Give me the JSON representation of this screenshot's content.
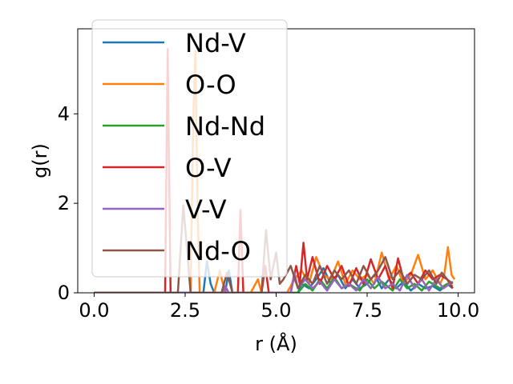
{
  "chart_data": {
    "type": "line",
    "xlabel": "r (Å)",
    "ylabel": "g(r)",
    "xlim": [
      -0.45,
      10.45
    ],
    "ylim": [
      0,
      5.9
    ],
    "xticks": [
      0.0,
      2.5,
      5.0,
      7.5,
      10.0
    ],
    "xtick_labels": [
      "0.0",
      "2.5",
      "5.0",
      "7.5",
      "10.0"
    ],
    "yticks": [
      0,
      2,
      4
    ],
    "ytick_labels": [
      "0",
      "2",
      "4"
    ],
    "grid": false,
    "legend_position": "upper-left",
    "series": [
      {
        "name": "Nd-V",
        "color": "#1f77b4",
        "points": [
          [
            0,
            0
          ],
          [
            3.0,
            0
          ],
          [
            3.1,
            0.7
          ],
          [
            3.2,
            0.2
          ],
          [
            3.3,
            0
          ],
          [
            3.6,
            0
          ],
          [
            3.7,
            0.5
          ],
          [
            3.8,
            0
          ],
          [
            5.6,
            0
          ],
          [
            5.7,
            0.2
          ],
          [
            5.9,
            0.1
          ],
          [
            6.1,
            0.3
          ],
          [
            6.3,
            0.55
          ],
          [
            6.5,
            0.2
          ],
          [
            6.7,
            0.4
          ],
          [
            6.9,
            0.1
          ],
          [
            7.1,
            0.3
          ],
          [
            7.3,
            0.1
          ],
          [
            7.5,
            0.2
          ],
          [
            7.7,
            0.4
          ],
          [
            7.9,
            0.1
          ],
          [
            8.1,
            0.3
          ],
          [
            8.3,
            0.1
          ],
          [
            8.5,
            0.25
          ],
          [
            8.7,
            0.05
          ],
          [
            8.9,
            0.2
          ],
          [
            9.1,
            0.1
          ],
          [
            9.3,
            0.15
          ],
          [
            9.5,
            0.05
          ],
          [
            9.7,
            0.2
          ],
          [
            9.85,
            0.1
          ]
        ]
      },
      {
        "name": "O-O",
        "color": "#ff7f0e",
        "points": [
          [
            0,
            0
          ],
          [
            2.65,
            0
          ],
          [
            2.72,
            3.8
          ],
          [
            2.78,
            5.4
          ],
          [
            2.84,
            2.0
          ],
          [
            2.9,
            0
          ],
          [
            3.3,
            0
          ],
          [
            3.45,
            0.5
          ],
          [
            3.6,
            0
          ],
          [
            4.3,
            0
          ],
          [
            4.5,
            0.3
          ],
          [
            4.6,
            0
          ],
          [
            5.3,
            0
          ],
          [
            5.5,
            0.3
          ],
          [
            5.7,
            0.5
          ],
          [
            5.9,
            0.2
          ],
          [
            6.1,
            0.8
          ],
          [
            6.3,
            0.4
          ],
          [
            6.5,
            0.3
          ],
          [
            6.7,
            0.7
          ],
          [
            6.9,
            0.2
          ],
          [
            7.1,
            0.5
          ],
          [
            7.3,
            0.3
          ],
          [
            7.5,
            0.4
          ],
          [
            7.7,
            0.2
          ],
          [
            7.9,
            0.9
          ],
          [
            8.1,
            0.3
          ],
          [
            8.3,
            0.6
          ],
          [
            8.5,
            0.2
          ],
          [
            8.7,
            0.4
          ],
          [
            8.9,
            0.85
          ],
          [
            9.1,
            0.3
          ],
          [
            9.3,
            0.5
          ],
          [
            9.5,
            0.2
          ],
          [
            9.62,
            0.4
          ],
          [
            9.72,
            1.02
          ],
          [
            9.82,
            0.4
          ],
          [
            9.9,
            0.3
          ]
        ]
      },
      {
        "name": "Nd-Nd",
        "color": "#2ca02c",
        "points": [
          [
            0,
            0
          ],
          [
            5.6,
            0
          ],
          [
            5.8,
            0.2
          ],
          [
            6.0,
            0.05
          ],
          [
            6.2,
            0.3
          ],
          [
            6.4,
            0.1
          ],
          [
            6.6,
            0.35
          ],
          [
            6.8,
            0.1
          ],
          [
            7.0,
            0.2
          ],
          [
            7.3,
            0.05
          ],
          [
            7.5,
            0.3
          ],
          [
            7.7,
            0.1
          ],
          [
            7.9,
            0.25
          ],
          [
            8.2,
            0.05
          ],
          [
            8.4,
            0.3
          ],
          [
            8.6,
            0.1
          ],
          [
            8.8,
            0.2
          ],
          [
            9.0,
            0.05
          ],
          [
            9.2,
            0.25
          ],
          [
            9.5,
            0.1
          ],
          [
            9.7,
            0.2
          ],
          [
            9.85,
            0.15
          ]
        ]
      },
      {
        "name": "O-V",
        "color": "#d62728",
        "points": [
          [
            0,
            0
          ],
          [
            1.95,
            0
          ],
          [
            2.02,
            5.45
          ],
          [
            2.1,
            0
          ],
          [
            3.95,
            0
          ],
          [
            4.02,
            1.85
          ],
          [
            4.1,
            0
          ],
          [
            4.6,
            0
          ],
          [
            4.7,
            0.6
          ],
          [
            4.8,
            0
          ],
          [
            5.4,
            0
          ],
          [
            5.55,
            0.6
          ],
          [
            5.65,
            0.2
          ],
          [
            5.75,
            1.12
          ],
          [
            5.85,
            0.3
          ],
          [
            6.0,
            0.8
          ],
          [
            6.2,
            0.2
          ],
          [
            6.4,
            0.6
          ],
          [
            6.6,
            0.3
          ],
          [
            6.8,
            0.6
          ],
          [
            7.0,
            0.15
          ],
          [
            7.2,
            0.55
          ],
          [
            7.4,
            0.2
          ],
          [
            7.6,
            0.75
          ],
          [
            7.8,
            0.3
          ],
          [
            8.0,
            0.6
          ],
          [
            8.2,
            0.1
          ],
          [
            8.35,
            0.77
          ],
          [
            8.5,
            0.3
          ],
          [
            8.7,
            0.45
          ],
          [
            8.9,
            0.2
          ],
          [
            9.1,
            0.5
          ],
          [
            9.3,
            0.3
          ],
          [
            9.5,
            0.4
          ],
          [
            9.7,
            0.3
          ],
          [
            9.85,
            0.1
          ]
        ]
      },
      {
        "name": "V-V",
        "color": "#9467bd",
        "points": [
          [
            0,
            0
          ],
          [
            3.55,
            0
          ],
          [
            3.6,
            0.15
          ],
          [
            3.7,
            0
          ],
          [
            5.4,
            0
          ],
          [
            5.5,
            0.45
          ],
          [
            5.6,
            0.1
          ],
          [
            5.8,
            0.3
          ],
          [
            6.0,
            0.1
          ],
          [
            6.2,
            0.25
          ],
          [
            6.4,
            0.05
          ],
          [
            6.6,
            0.3
          ],
          [
            6.8,
            0.1
          ],
          [
            7.0,
            0.2
          ],
          [
            7.2,
            0.05
          ],
          [
            7.4,
            0.3
          ],
          [
            7.6,
            0.1
          ],
          [
            7.8,
            0.35
          ],
          [
            8.0,
            0.1
          ],
          [
            8.2,
            0.2
          ],
          [
            8.4,
            0.05
          ],
          [
            8.6,
            0.4
          ],
          [
            8.8,
            0.1
          ],
          [
            9.0,
            0.3
          ],
          [
            9.2,
            0.05
          ],
          [
            9.4,
            0.3
          ],
          [
            9.6,
            0.1
          ],
          [
            9.85,
            0.25
          ]
        ]
      },
      {
        "name": "Nd-O",
        "color": "#8c564b",
        "points": [
          [
            0,
            0
          ],
          [
            2.3,
            0
          ],
          [
            2.45,
            1.95
          ],
          [
            2.55,
            1.0
          ],
          [
            2.65,
            0
          ],
          [
            3.5,
            0
          ],
          [
            3.65,
            0.45
          ],
          [
            3.8,
            0
          ],
          [
            4.6,
            0
          ],
          [
            4.72,
            1.4
          ],
          [
            4.85,
            0.3
          ],
          [
            5.0,
            0.9
          ],
          [
            5.1,
            0.2
          ],
          [
            5.2,
            0.3
          ],
          [
            5.4,
            0.6
          ],
          [
            5.6,
            0.1
          ],
          [
            5.8,
            0.4
          ],
          [
            6.0,
            0.2
          ],
          [
            6.2,
            0.6
          ],
          [
            6.4,
            0.2
          ],
          [
            6.6,
            0.5
          ],
          [
            6.8,
            0.3
          ],
          [
            7.0,
            0.5
          ],
          [
            7.2,
            0.2
          ],
          [
            7.4,
            0.6
          ],
          [
            7.6,
            0.3
          ],
          [
            7.8,
            0.5
          ],
          [
            8.0,
            0.8
          ],
          [
            8.2,
            0.3
          ],
          [
            8.4,
            0.5
          ],
          [
            8.6,
            0.2
          ],
          [
            8.8,
            0.4
          ],
          [
            9.0,
            0.3
          ],
          [
            9.2,
            0.5
          ],
          [
            9.4,
            0.2
          ],
          [
            9.55,
            0.45
          ],
          [
            9.7,
            0.3
          ],
          [
            9.85,
            0.2
          ]
        ]
      }
    ]
  }
}
